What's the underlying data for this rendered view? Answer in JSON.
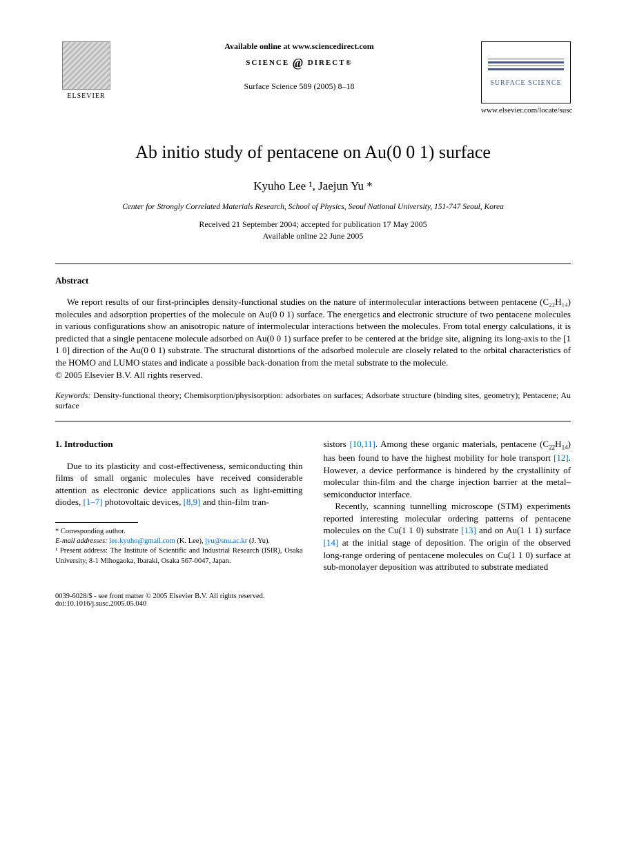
{
  "header": {
    "elsevier": "ELSEVIER",
    "available_online": "Available online at www.sciencedirect.com",
    "sciencedirect": "SCIENCE",
    "sciencedirect2": "DIRECT",
    "journal_ref": "Surface Science 589 (2005) 8–18",
    "journal_name": "SURFACE SCIENCE",
    "locate_url": "www.elsevier.com/locate/susc"
  },
  "title": "Ab initio study of pentacene on Au(0 0 1) surface",
  "authors": "Kyuho Lee ¹, Jaejun Yu *",
  "affiliation": "Center for Strongly Correlated Materials Research, School of Physics, Seoul National University, 151-747 Seoul, Korea",
  "dates": {
    "received": "Received 21 September 2004; accepted for publication 17 May 2005",
    "online": "Available online 22 June 2005"
  },
  "abstract": {
    "heading": "Abstract",
    "text": "We report results of our first-principles density-functional studies on the nature of intermolecular interactions between pentacene (C₂₂H₁₄) molecules and adsorption properties of the molecule on Au(0 0 1) surface. The energetics and electronic structure of two pentacene molecules in various configurations show an anisotropic nature of intermolecular interactions between the molecules. From total energy calculations, it is predicted that a single pentacene molecule adsorbed on Au(0 0 1) surface prefer to be centered at the bridge site, aligning its long-axis to the [1 1 0] direction of the Au(0 0 1) substrate. The structural distortions of the adsorbed molecule are closely related to the orbital characteristics of the HOMO and LUMO states and indicate a possible back-donation from the metal substrate to the molecule.",
    "copyright": "© 2005 Elsevier B.V. All rights reserved."
  },
  "keywords": {
    "label": "Keywords:",
    "text": " Density-functional theory; Chemisorption/physisorption: adsorbates on surfaces; Adsorbate structure (binding sites, geometry); Pentacene; Au surface"
  },
  "section1": {
    "heading": "1. Introduction",
    "left_para": "Due to its plasticity and cost-effectiveness, semiconducting thin films of small organic molecules have received considerable attention as electronic device applications such as light-emitting diodes, [1–7] photovoltaic devices, [8,9] and thin-film tran-",
    "right_para1": "sistors [10,11]. Among these organic materials, pentacene (C₂₂H₁₄) has been found to have the highest mobility for hole transport [12]. However, a device performance is hindered by the crystallinity of molecular thin-film and the charge injection barrier at the metal–semiconductor interface.",
    "right_para2": "Recently, scanning tunnelling microscope (STM) experiments reported interesting molecular ordering patterns of pentacene molecules on the Cu(1 1 0) substrate [13] and on Au(1 1 1) surface [14] at the initial stage of deposition. The origin of the observed long-range ordering of pentacene molecules on Cu(1 1 0) surface at sub-monolayer deposition was attributed to substrate mediated"
  },
  "footnotes": {
    "corresponding": "* Corresponding author.",
    "email_label": "E-mail addresses:",
    "email1": "lee.kyuho@gmail.com",
    "email1_name": " (K. Lee), ",
    "email2": "jyu@snu.ac.kr",
    "email2_name": " (J. Yu).",
    "present": "¹ Present address: The Institute of Scientific and Industrial Research (ISIR), Osaka University, 8-1 Mihogaoka, Ibaraki, Osaka 567-0047, Japan."
  },
  "footer": {
    "line": "0039-6028/$ - see front matter © 2005 Elsevier B.V. All rights reserved.",
    "doi": "doi:10.1016/j.susc.2005.05.040"
  },
  "refs": {
    "r1_7": "[1–7]",
    "r8_9": "[8,9]",
    "r10_11": "[10,11]",
    "r12": "[12]",
    "r13": "[13]",
    "r14": "[14]"
  }
}
